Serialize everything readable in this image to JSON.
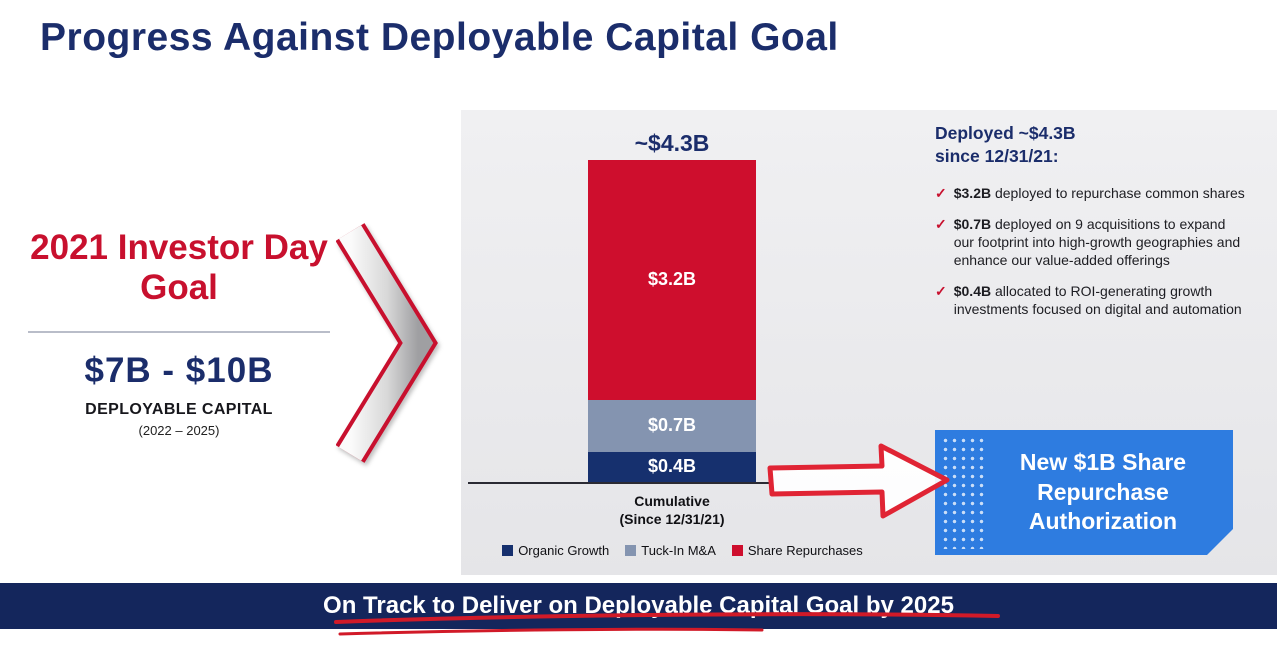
{
  "colors": {
    "navy": "#1b2d6b",
    "red": "#c8102e",
    "callout_blue": "#2e7ce0",
    "panel_gray": "#e9e9eb",
    "footer_navy": "#14265c"
  },
  "slide": {
    "title": "Progress Against Deployable Capital Goal",
    "footer": "On Track to Deliver on Deployable Capital Goal by 2025"
  },
  "goal": {
    "heading": "2021 Investor Day Goal",
    "range": "$7B - $10B",
    "label": "DEPLOYABLE CAPITAL",
    "period": "(2022 – 2025)"
  },
  "chart_data": {
    "type": "bar",
    "stacked": true,
    "title": "",
    "total_label": "~$4.3B",
    "categories": [
      "Cumulative (Since 12/31/21)"
    ],
    "x_label_line1": "Cumulative",
    "x_label_line2": "(Since 12/31/21)",
    "ylim": [
      0,
      4.3
    ],
    "unit": "$B",
    "legend_position": "bottom",
    "series": [
      {
        "name": "Organic Growth",
        "values": [
          0.4
        ],
        "label": "$0.4B",
        "color": "#16306e"
      },
      {
        "name": "Tuck-In M&A",
        "values": [
          0.7
        ],
        "label": "$0.7B",
        "color": "#8494b0"
      },
      {
        "name": "Share Repurchases",
        "values": [
          3.2
        ],
        "label": "$3.2B",
        "color": "#ce0e2d"
      }
    ]
  },
  "right_panel": {
    "heading_line1": "Deployed ~$4.3B",
    "heading_line2": "since 12/31/21:",
    "bullets": [
      {
        "bold": "$3.2B",
        "text": " deployed to repurchase common shares"
      },
      {
        "bold": "$0.7B",
        "text": " deployed on 9 acquisitions to expand our footprint into high-growth geographies and enhance our value-added offerings"
      },
      {
        "bold": "$0.4B",
        "text": " allocated to ROI-generating growth investments focused on digital and automation"
      }
    ],
    "callout": "New $1B Share Repurchase Authorization"
  }
}
